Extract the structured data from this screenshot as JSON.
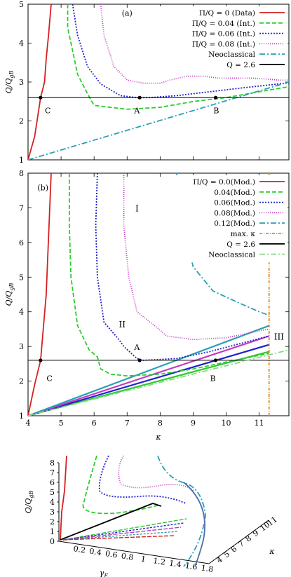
{
  "chart_data": [
    {
      "panel": "(a)",
      "type": "line",
      "xlim": [
        4,
        11.9
      ],
      "ylim": [
        1,
        5
      ],
      "yticks": [
        1,
        2,
        3,
        4,
        5
      ],
      "ylabel": "Q/Q_gB",
      "legend_position": "top-right",
      "series": [
        {
          "name": "Π/Q = 0 (Data)",
          "color": "#d62020",
          "dash": "solid",
          "points": [
            [
              4.0,
              1.0
            ],
            [
              4.2,
              1.6
            ],
            [
              4.38,
              2.6
            ],
            [
              4.5,
              3.0
            ],
            [
              4.55,
              3.6
            ],
            [
              4.62,
              4.2
            ],
            [
              4.7,
              5.0
            ]
          ]
        },
        {
          "name": "Π/Q = 0.04 (Int.)",
          "color": "#2ecc2e",
          "dash": "6,3",
          "points": [
            [
              5.2,
              5.0
            ],
            [
              5.2,
              4.4
            ],
            [
              5.5,
              3.2
            ],
            [
              5.8,
              2.7
            ],
            [
              6.0,
              2.4
            ],
            [
              6.5,
              2.35
            ],
            [
              7.0,
              2.3
            ],
            [
              8.0,
              2.35
            ],
            [
              9.0,
              2.5
            ],
            [
              10.0,
              2.6
            ],
            [
              11.0,
              2.75
            ],
            [
              11.9,
              2.88
            ]
          ]
        },
        {
          "name": "Π/Q = 0.06 (Int.)",
          "color": "#2222cc",
          "dash": "2,2",
          "points": [
            [
              5.35,
              5.0
            ],
            [
              5.5,
              4.2
            ],
            [
              5.8,
              3.4
            ],
            [
              6.2,
              2.95
            ],
            [
              6.8,
              2.65
            ],
            [
              7.3,
              2.6
            ],
            [
              7.7,
              2.6
            ],
            [
              8.5,
              2.65
            ],
            [
              9.5,
              2.75
            ],
            [
              10.5,
              2.85
            ],
            [
              11.9,
              2.98
            ]
          ]
        },
        {
          "name": "Π/Q = 0.08 (Int.)",
          "color": "#c03cc0",
          "dash": "1,2",
          "points": [
            [
              6.2,
              5.0
            ],
            [
              6.3,
              4.2
            ],
            [
              6.6,
              3.4
            ],
            [
              7.0,
              3.05
            ],
            [
              7.5,
              2.97
            ],
            [
              8.0,
              2.97
            ],
            [
              8.3,
              3.05
            ],
            [
              8.8,
              3.15
            ],
            [
              9.3,
              3.15
            ],
            [
              9.8,
              3.1
            ],
            [
              10.3,
              3.1
            ],
            [
              10.8,
              3.1
            ],
            [
              11.3,
              3.07
            ],
            [
              11.6,
              3.05
            ],
            [
              11.9,
              3.05
            ]
          ]
        },
        {
          "name": "Neoclassical",
          "color": "#2aa0b4",
          "dash": "8,3,2,3",
          "points": [
            [
              4.0,
              1.0
            ],
            [
              11.9,
              3.0
            ]
          ]
        },
        {
          "name": "Q = 2.6",
          "color": "#000000",
          "dash": "solid",
          "points": [
            [
              4.0,
              2.6
            ],
            [
              11.9,
              2.6
            ]
          ]
        }
      ],
      "markers": [
        [
          4.38,
          2.6
        ],
        [
          7.38,
          2.6
        ],
        [
          9.68,
          2.6
        ]
      ],
      "annotations": [
        {
          "text": "C",
          "x": 4.6,
          "y": 2.2
        },
        {
          "text": "A",
          "x": 7.3,
          "y": 2.2
        },
        {
          "text": "B",
          "x": 9.7,
          "y": 2.2
        },
        {
          "text": "(a)",
          "x": 7.0,
          "y": 4.7
        }
      ]
    },
    {
      "panel": "(b)",
      "type": "line",
      "xlim": [
        4,
        11.9
      ],
      "ylim": [
        1,
        8
      ],
      "xticks": [
        4,
        5,
        6,
        7,
        8,
        9,
        10,
        11
      ],
      "yticks": [
        1,
        2,
        3,
        4,
        5,
        6,
        7,
        8
      ],
      "xlabel": "κ",
      "ylabel": "Q/Q_gB",
      "legend_position": "top-right",
      "series": [
        {
          "name": "Π/Q = 0.0(Mod.)",
          "color": "#d62020",
          "dash": "solid",
          "points": [
            [
              4.0,
              1.0
            ],
            [
              4.2,
              1.9
            ],
            [
              4.38,
              2.6
            ],
            [
              4.55,
              4.5
            ],
            [
              4.7,
              8.0
            ]
          ]
        },
        {
          "name": "0.04(Mod.)",
          "color": "#2ecc2e",
          "dash": "6,3",
          "points": [
            [
              5.25,
              8.0
            ],
            [
              5.25,
              6.5
            ],
            [
              5.3,
              5.0
            ],
            [
              5.5,
              3.6
            ],
            [
              5.85,
              2.9
            ],
            [
              6.1,
              2.7
            ],
            [
              6.2,
              2.35
            ],
            [
              6.5,
              2.2
            ],
            [
              7.0,
              2.15
            ],
            [
              8.0,
              2.2
            ],
            [
              9.0,
              2.35
            ],
            [
              10.0,
              2.55
            ],
            [
              11.3,
              2.8
            ]
          ]
        },
        {
          "name": "0.06(Mod.)",
          "color": "#2222cc",
          "dash": "2,2",
          "points": [
            [
              6.1,
              8.0
            ],
            [
              6.05,
              6.5
            ],
            [
              6.1,
              5.0
            ],
            [
              6.3,
              3.7
            ],
            [
              6.75,
              3.2
            ],
            [
              6.9,
              3.0
            ],
            [
              7.3,
              2.65
            ],
            [
              7.5,
              2.6
            ],
            [
              8.5,
              2.65
            ],
            [
              9.5,
              2.85
            ],
            [
              10.5,
              3.1
            ],
            [
              11.3,
              3.3
            ]
          ]
        },
        {
          "name": "0.08(Mod.)",
          "color": "#c03cc0",
          "dash": "1,2",
          "points": [
            [
              6.9,
              8.0
            ],
            [
              6.9,
              6.5
            ],
            [
              7.05,
              5.0
            ],
            [
              7.3,
              4.0
            ],
            [
              7.7,
              3.7
            ],
            [
              7.9,
              3.55
            ],
            [
              8.2,
              3.3
            ],
            [
              9.0,
              3.2
            ],
            [
              10.0,
              3.25
            ],
            [
              11.0,
              3.45
            ],
            [
              11.3,
              3.5
            ]
          ]
        },
        {
          "name": "0.12(Mod.)",
          "color": "#2aa0b4",
          "dash": "8,3,2,3",
          "points": [
            [
              8.5,
              8.0
            ],
            [
              8.7,
              6.5
            ],
            [
              9.0,
              5.3
            ],
            [
              9.6,
              4.6
            ],
            [
              10.4,
              4.25
            ],
            [
              11.0,
              4.0
            ],
            [
              11.3,
              3.9
            ]
          ]
        },
        {
          "name": "max. κ",
          "color": "#e08a1e",
          "dash": "4,2,1,2",
          "points": [
            [
              11.3,
              1.0
            ],
            [
              11.3,
              8.0
            ]
          ]
        },
        {
          "name": "Q = 2.6",
          "color": "#000000",
          "dash": "solid",
          "points": [
            [
              4.0,
              2.6
            ],
            [
              11.9,
              2.6
            ]
          ]
        },
        {
          "name": "Neoclassical",
          "color": "#8ad88a",
          "dash": "8,3,2,3",
          "points": [
            [
              4.0,
              1.0
            ],
            [
              11.9,
              2.9
            ]
          ]
        }
      ],
      "bundle_lines": [
        {
          "color": "#2ecc2e",
          "points": [
            [
              4.0,
              1.0
            ],
            [
              11.3,
              2.85
            ]
          ]
        },
        {
          "color": "#2222cc",
          "points": [
            [
              4.0,
              1.0
            ],
            [
              11.3,
              3.05
            ]
          ]
        },
        {
          "color": "#c03cc0",
          "points": [
            [
              4.0,
              1.0
            ],
            [
              11.3,
              3.3
            ]
          ]
        },
        {
          "color": "#2aa0b4",
          "points": [
            [
              4.0,
              1.0
            ],
            [
              11.3,
              3.6
            ]
          ]
        }
      ],
      "markers": [
        [
          4.38,
          2.6
        ],
        [
          7.38,
          2.6
        ],
        [
          9.68,
          2.6
        ]
      ],
      "annotations": [
        {
          "text": "I",
          "x": 7.3,
          "y": 6.9
        },
        {
          "text": "II",
          "x": 6.85,
          "y": 3.55
        },
        {
          "text": "III",
          "x": 11.6,
          "y": 3.2
        },
        {
          "text": "A",
          "x": 7.3,
          "y": 2.9
        },
        {
          "text": "B",
          "x": 9.6,
          "y": 2.0
        },
        {
          "text": "C",
          "x": 4.65,
          "y": 2.0
        },
        {
          "text": "(b)",
          "x": 4.45,
          "y": 7.5
        }
      ]
    },
    {
      "panel": "3d",
      "type": "line",
      "zlabel": "Q/Q_gB",
      "xlabel": "γ_E",
      "ylabel": "κ",
      "zticks": [
        0,
        1,
        2,
        3,
        4,
        5,
        6,
        7,
        8
      ],
      "xticks": [
        "0.2",
        "0.4",
        "0.6",
        "0.8",
        "1",
        "1.2",
        "1.4",
        "1.6",
        "1.8"
      ],
      "yticks": [
        "4",
        "5",
        "6",
        "7",
        "8",
        "9",
        "10",
        "11"
      ]
    }
  ]
}
